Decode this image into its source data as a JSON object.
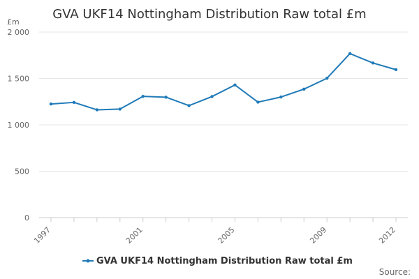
{
  "chart_data": {
    "type": "line",
    "title": "GVA UKF14 Nottingham Distribution Raw total £m",
    "unit_label": "£m",
    "xlabel": "",
    "ylabel": "£m",
    "ylim": [
      0,
      2000
    ],
    "y_ticks": [
      0,
      500,
      1000,
      1500,
      2000
    ],
    "y_tick_labels": [
      "0",
      "500",
      "1 000",
      "1 500",
      "2 000"
    ],
    "x": [
      1997,
      1998,
      1999,
      2000,
      2001,
      2002,
      2003,
      2004,
      2005,
      2006,
      2007,
      2008,
      2009,
      2010,
      2011,
      2012
    ],
    "x_tick_labels": [
      "1997",
      "2001",
      "2005",
      "2009",
      "2012"
    ],
    "x_tick_values": [
      1997,
      2001,
      2005,
      2009,
      2012
    ],
    "series": [
      {
        "name": "GVA UKF14 Nottingham Distribution Raw total £m",
        "color": "#1f7ab8",
        "values": [
          1225,
          1242,
          1162,
          1170,
          1307,
          1298,
          1207,
          1305,
          1430,
          1245,
          1300,
          1385,
          1502,
          1768,
          1667,
          1595
        ]
      }
    ],
    "grid": true,
    "legend": "bottom-center",
    "credits": "Source:"
  }
}
